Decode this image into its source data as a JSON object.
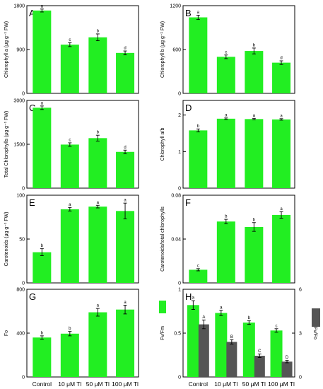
{
  "colors": {
    "bar": "#22ee22",
    "bar_secondary": "#555555",
    "axis": "#000000"
  },
  "x_categories": [
    "Control",
    "10 μM Tl",
    "50 μM Tl",
    "100 μM Tl"
  ],
  "chart_data": [
    {
      "letter": "A",
      "type": "bar",
      "ylabel": "Chlorophyll a (μg g⁻¹ FW)",
      "ylim": [
        0,
        1800
      ],
      "yticks": [
        0,
        900,
        1800
      ],
      "values": [
        1700,
        1000,
        1150,
        830
      ],
      "errors": [
        30,
        40,
        70,
        40
      ],
      "sig": [
        "a",
        "c",
        "b",
        "d"
      ]
    },
    {
      "letter": "B",
      "type": "bar",
      "ylabel": "Chlorophyll b (μg g⁻¹ FW)",
      "ylim": [
        0,
        1200
      ],
      "yticks": [
        0,
        600,
        1200
      ],
      "values": [
        1040,
        500,
        580,
        420
      ],
      "errors": [
        30,
        25,
        40,
        25
      ],
      "sig": [
        "a",
        "c",
        "b",
        "d"
      ]
    },
    {
      "letter": "C",
      "type": "bar",
      "ylabel": "Total Chlorophylls (μg g⁻¹ FW)",
      "ylim": [
        0,
        3000
      ],
      "yticks": [
        0,
        1500,
        3000
      ],
      "values": [
        2750,
        1490,
        1710,
        1240
      ],
      "errors": [
        60,
        60,
        100,
        60
      ],
      "sig": [
        "a",
        "c",
        "b",
        "d"
      ]
    },
    {
      "letter": "D",
      "type": "bar",
      "ylabel": "Chlorophyll a/b",
      "ylim": [
        0,
        2.4
      ],
      "yticks": [
        0,
        1,
        2
      ],
      "values": [
        1.58,
        1.9,
        1.89,
        1.88
      ],
      "errors": [
        0.04,
        0.02,
        0.02,
        0.02
      ],
      "sig": [
        "b",
        "a",
        "a",
        "a"
      ]
    },
    {
      "letter": "E",
      "type": "bar",
      "ylabel": "Carotenoids (μg g⁻¹ FW)",
      "ylim": [
        0,
        100
      ],
      "yticks": [
        0,
        50,
        100
      ],
      "values": [
        35,
        84,
        87,
        82
      ],
      "errors": [
        4,
        2,
        1.5,
        9
      ],
      "sig": [
        "b",
        "a",
        "a",
        "a"
      ]
    },
    {
      "letter": "F",
      "type": "bar",
      "ylabel": "Carotenoids/total chlorophylls",
      "ylim": [
        0,
        0.08
      ],
      "yticks": [
        0,
        0.04,
        0.08
      ],
      "values": [
        0.012,
        0.056,
        0.051,
        0.062
      ],
      "errors": [
        0.001,
        0.002,
        0.004,
        0.003
      ],
      "sig": [
        "c",
        "b",
        "b",
        "a"
      ]
    },
    {
      "letter": "G",
      "type": "bar",
      "ylabel": "Fo",
      "ylim": [
        0,
        800
      ],
      "yticks": [
        0,
        400,
        800
      ],
      "values": [
        360,
        395,
        590,
        615
      ],
      "errors": [
        15,
        20,
        35,
        40
      ],
      "sig": [
        "b",
        "b",
        "a",
        "a"
      ]
    },
    {
      "letter": "H",
      "type": "bar",
      "ylabel": "Fv/Fm",
      "ylabel_right": "Fv/Fo",
      "ylim": [
        0,
        1
      ],
      "yticks": [
        0,
        0.5,
        1
      ],
      "ylim_right": [
        0,
        6
      ],
      "yticks_right": [
        0,
        3,
        6
      ],
      "series": [
        {
          "name": "Fv/Fm",
          "values": [
            0.82,
            0.73,
            0.62,
            0.53
          ],
          "errors": [
            0.05,
            0.03,
            0.02,
            0.02
          ],
          "sig": [
            "a",
            "a",
            "b",
            "c"
          ]
        },
        {
          "name": "Fv/Fo",
          "values": [
            3.6,
            2.4,
            1.45,
            1.05
          ],
          "errors": [
            0.3,
            0.15,
            0.12,
            0.08
          ],
          "sig": [
            "A",
            "B",
            "C",
            "D"
          ]
        }
      ]
    }
  ]
}
